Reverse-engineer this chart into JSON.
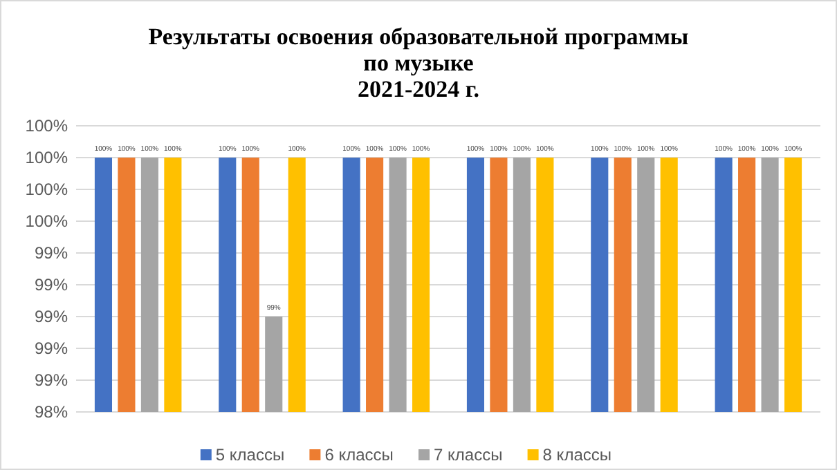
{
  "chart_data": {
    "type": "bar",
    "title": "Результаты освоения образовательной программы\nпо музыке\n2021-2024 г.",
    "categories": [
      null,
      null,
      null,
      null,
      null,
      null
    ],
    "series": [
      {
        "name": "5 классы",
        "color": "#4472c4",
        "values": [
          100,
          100,
          100,
          100,
          100,
          100
        ],
        "value_labels": [
          "100%",
          "100%",
          "100%",
          "100%",
          "100%",
          "100%"
        ]
      },
      {
        "name": "6 классы",
        "color": "#ed7d31",
        "values": [
          100,
          100,
          100,
          100,
          100,
          100
        ],
        "value_labels": [
          "100%",
          "100%",
          "100%",
          "100%",
          "100%",
          "100%"
        ]
      },
      {
        "name": "7 классы",
        "color": "#a5a5a5",
        "values": [
          100,
          99,
          100,
          100,
          100,
          100
        ],
        "value_labels": [
          "100%",
          "99%",
          "100%",
          "100%",
          "100%",
          "100%"
        ]
      },
      {
        "name": "8 классы",
        "color": "#ffc000",
        "values": [
          100,
          100,
          100,
          100,
          100,
          100
        ],
        "value_labels": [
          "100%",
          "100%",
          "100%",
          "100%",
          "100%",
          "100%"
        ]
      }
    ],
    "ylim": [
      98.4,
      100.2
    ],
    "yticks": [
      {
        "value": 98.4,
        "label": "98%"
      },
      {
        "value": 98.6,
        "label": "99%"
      },
      {
        "value": 98.8,
        "label": "99%"
      },
      {
        "value": 99,
        "label": "99%"
      },
      {
        "value": 99.2,
        "label": "99%"
      },
      {
        "value": 99.4,
        "label": "99%"
      },
      {
        "value": 99.6,
        "label": "100%"
      },
      {
        "value": 99.8,
        "label": "100%"
      },
      {
        "value": 100,
        "label": "100%"
      },
      {
        "value": 100.2,
        "label": "100%"
      }
    ],
    "grid": "y",
    "legend": "bottom"
  }
}
